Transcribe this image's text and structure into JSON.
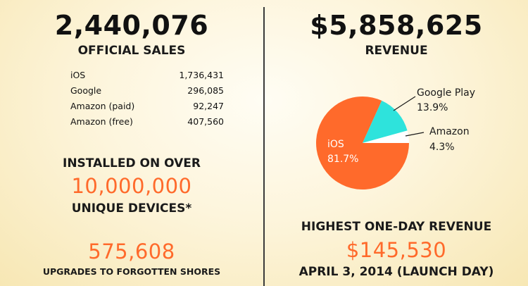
{
  "sales": {
    "total": "2,440,076",
    "label": "OFFICIAL SALES",
    "rows": [
      {
        "platform": "iOS",
        "value": "1,736,431"
      },
      {
        "platform": "Google",
        "value": "296,085"
      },
      {
        "platform": "Amazon (paid)",
        "value": "92,247"
      },
      {
        "platform": "Amazon (free)",
        "value": "407,560"
      }
    ]
  },
  "installs": {
    "line1": "INSTALLED ON OVER",
    "number": "10,000,000",
    "line2": "UNIQUE DEVICES*"
  },
  "upgrades": {
    "number": "575,608",
    "label": "UPGRADES TO FORGOTTEN SHORES"
  },
  "revenue": {
    "total": "$5,858,625",
    "label": "REVENUE"
  },
  "peak": {
    "label": "HIGHEST ONE-DAY REVENUE",
    "value": "$145,530",
    "date": "APRIL 3, 2014 (LAUNCH DAY)"
  },
  "colors": {
    "ios": "#ff6a2b",
    "google": "#2ee3dc",
    "amazon": "#ffffff",
    "accent": "#ff6a2b"
  },
  "chart_data": {
    "type": "pie",
    "title": "",
    "series": [
      {
        "name": "iOS",
        "label": "iOS",
        "percent_label": "81.7%",
        "value": 81.7,
        "color": "#ff6a2b"
      },
      {
        "name": "Google Play",
        "label": "Google Play",
        "percent_label": "13.9%",
        "value": 13.9,
        "color": "#2ee3dc"
      },
      {
        "name": "Amazon",
        "label": "Amazon",
        "percent_label": "4.3%",
        "value": 4.3,
        "color": "#ffffff"
      }
    ]
  }
}
